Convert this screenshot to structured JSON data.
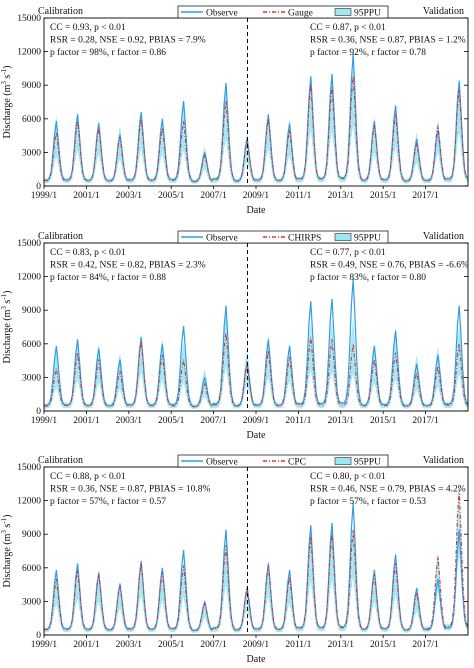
{
  "chart_data": [
    {
      "type": "line",
      "title": "",
      "xlabel": "Date",
      "ylabel": "Discharge (m³ s⁻¹)",
      "ylabel_main": "Discharge (m",
      "ylabel_sup1": "3",
      "ylabel_mid": " s",
      "ylabel_sup2": "-1",
      "ylabel_end": ")",
      "xlim": [
        1999.0,
        2019.0
      ],
      "ylim": [
        0,
        15000
      ],
      "yticks": [
        0,
        3000,
        6000,
        9000,
        12000,
        15000
      ],
      "xticks": [
        1999,
        2001,
        2003,
        2005,
        2007,
        2009,
        2011,
        2013,
        2015,
        2017
      ],
      "xtick_labels": [
        "1999/1",
        "2001/1",
        "2003/1",
        "2005/1",
        "2007/1",
        "2009/1",
        "2011/1",
        "2013/1",
        "2015/1",
        "2017/1"
      ],
      "split_x": 2008.6,
      "period_labels": [
        "Calibration",
        "Validation"
      ],
      "legend": [
        {
          "name": "Observe",
          "style": "solid",
          "color": "#2f9ee4"
        },
        {
          "name": "Gauge",
          "style": "dashdot",
          "color": "#e0322c"
        },
        {
          "name": "95PPU",
          "style": "band",
          "color": "#9fe8f2"
        }
      ],
      "stats_calibration": [
        "CC = 0.93, p < 0.01",
        "RSR = 0.28, NSE = 0.92, PBIAS = 7.9%",
        "p factor = 98%, r factor = 0.86"
      ],
      "stats_validation": [
        "CC = 0.87, p < 0.01",
        "RSR = 0.36, NSE = 0.87, PBIAS = 1.2%",
        "p factor = 92%, r factor = 0.78"
      ],
      "annual_peaks": {
        "years": [
          1999,
          2000,
          2001,
          2002,
          2003,
          2004,
          2005,
          2006,
          2007,
          2008,
          2009,
          2010,
          2011,
          2012,
          2013,
          2014,
          2015,
          2016,
          2017,
          2018
        ],
        "observe": [
          5800,
          6400,
          5600,
          4600,
          6600,
          6000,
          7600,
          3000,
          9200,
          4200,
          6400,
          5600,
          9800,
          10000,
          11800,
          5800,
          7200,
          4200,
          5000,
          9400
        ],
        "simulated": [
          4800,
          5800,
          5200,
          4400,
          6000,
          5200,
          5800,
          2800,
          7600,
          4000,
          6000,
          5000,
          9000,
          8800,
          9800,
          5400,
          6400,
          3800,
          5400,
          8600
        ],
        "band_upper": [
          6200,
          6800,
          6000,
          5400,
          6800,
          6200,
          7200,
          3600,
          8800,
          4800,
          6600,
          6000,
          9400,
          9600,
          10600,
          6200,
          7000,
          4800,
          6000,
          9200
        ]
      },
      "annual_baseflow": 300
    },
    {
      "type": "line",
      "title": "",
      "xlabel": "Date",
      "ylabel": "Discharge (m³ s⁻¹)",
      "ylabel_main": "Discharge (m",
      "ylabel_sup1": "3",
      "ylabel_mid": " s",
      "ylabel_sup2": "-1",
      "ylabel_end": ")",
      "xlim": [
        1999.0,
        2019.0
      ],
      "ylim": [
        0,
        15000
      ],
      "yticks": [
        0,
        3000,
        6000,
        9000,
        12000,
        15000
      ],
      "xticks": [
        1999,
        2001,
        2003,
        2005,
        2007,
        2009,
        2011,
        2013,
        2015,
        2017
      ],
      "xtick_labels": [
        "1999/1",
        "2001/1",
        "2003/1",
        "2005/1",
        "2007/1",
        "2009/1",
        "2011/1",
        "2013/1",
        "2015/1",
        "2017/1"
      ],
      "split_x": 2008.6,
      "period_labels": [
        "Calibration",
        "Validation"
      ],
      "legend": [
        {
          "name": "Observe",
          "style": "solid",
          "color": "#2f9ee4"
        },
        {
          "name": "CHIRPS",
          "style": "dashdot",
          "color": "#e0322c"
        },
        {
          "name": "95PPU",
          "style": "band",
          "color": "#9fe8f2"
        }
      ],
      "stats_calibration": [
        "CC = 0.83, p < 0.01",
        "RSR = 0.42, NSE = 0.82, PBIAS = 2.3%",
        "p factor = 84%, r factor = 0.88"
      ],
      "stats_validation": [
        "CC = 0.77, p < 0.01",
        "RSR = 0.49, NSE = 0.76, PBIAS = -6.6%",
        "p factor = 83%, r factor = 0.80"
      ],
      "annual_peaks": {
        "years": [
          1999,
          2000,
          2001,
          2002,
          2003,
          2004,
          2005,
          2006,
          2007,
          2008,
          2009,
          2010,
          2011,
          2012,
          2013,
          2014,
          2015,
          2016,
          2017,
          2018
        ],
        "observe": [
          5800,
          6400,
          5600,
          4600,
          6600,
          6000,
          7600,
          3000,
          9400,
          4200,
          6400,
          5800,
          9800,
          10000,
          11800,
          5800,
          7200,
          4200,
          5000,
          9400
        ],
        "simulated": [
          3800,
          5200,
          4600,
          3600,
          6200,
          5000,
          4600,
          2400,
          7000,
          4400,
          5400,
          4800,
          6600,
          6400,
          6000,
          4600,
          5200,
          3400,
          4000,
          6000
        ],
        "band_upper": [
          5600,
          6400,
          6000,
          5200,
          7000,
          6400,
          6200,
          3800,
          8600,
          5600,
          6800,
          6200,
          8000,
          8200,
          8400,
          6200,
          6800,
          5000,
          5800,
          7800
        ]
      },
      "annual_baseflow": 300
    },
    {
      "type": "line",
      "title": "",
      "xlabel": "Date",
      "ylabel": "Discharge (m³ s⁻¹)",
      "ylabel_main": "Discharge (m",
      "ylabel_sup1": "3",
      "ylabel_mid": " s",
      "ylabel_sup2": "-1",
      "ylabel_end": ")",
      "xlim": [
        1999.0,
        2019.0
      ],
      "ylim": [
        0,
        15000
      ],
      "yticks": [
        0,
        3000,
        6000,
        9000,
        12000,
        15000
      ],
      "xticks": [
        1999,
        2001,
        2003,
        2005,
        2007,
        2009,
        2011,
        2013,
        2015,
        2017
      ],
      "xtick_labels": [
        "1999/1",
        "2001/1",
        "2003/1",
        "2005/1",
        "2007/1",
        "2009/1",
        "2011/1",
        "2013/1",
        "2015/1",
        "2017/1"
      ],
      "split_x": 2008.6,
      "period_labels": [
        "Calibration",
        "Validation"
      ],
      "legend": [
        {
          "name": "Observe",
          "style": "solid",
          "color": "#2f9ee4"
        },
        {
          "name": "CPC",
          "style": "dashdot",
          "color": "#e0322c"
        },
        {
          "name": "95PPU",
          "style": "band",
          "color": "#9fe8f2"
        }
      ],
      "stats_calibration": [
        "CC = 0.88, p < 0.01",
        "RSR = 0.36, NSE = 0.87, PBIAS = 10.8%",
        "p factor = 57%, r factor = 0.57"
      ],
      "stats_validation": [
        "CC = 0.80, p < 0.01",
        "RSR = 0.46, NSE = 0.79, PBIAS = 4.2%",
        "p factor = 57%, r factor = 0.53"
      ],
      "annual_peaks": {
        "years": [
          1999,
          2000,
          2001,
          2002,
          2003,
          2004,
          2005,
          2006,
          2007,
          2008,
          2009,
          2010,
          2011,
          2012,
          2013,
          2014,
          2015,
          2016,
          2017,
          2018
        ],
        "observe": [
          5800,
          6400,
          5600,
          4600,
          6600,
          6000,
          7600,
          3000,
          9400,
          4200,
          6400,
          5800,
          9800,
          10000,
          11800,
          5800,
          7200,
          4200,
          5000,
          9400
        ],
        "simulated": [
          5000,
          5800,
          5400,
          4400,
          6400,
          5600,
          6200,
          2800,
          8000,
          4200,
          6200,
          5200,
          8800,
          9000,
          9400,
          5400,
          6400,
          3800,
          7000,
          13000
        ],
        "band_upper": [
          5400,
          6200,
          5800,
          4800,
          6800,
          6000,
          6600,
          3200,
          8400,
          4600,
          6600,
          5600,
          9200,
          9400,
          9800,
          5800,
          6800,
          4200,
          7400,
          13400
        ]
      },
      "annual_baseflow": 300
    }
  ]
}
